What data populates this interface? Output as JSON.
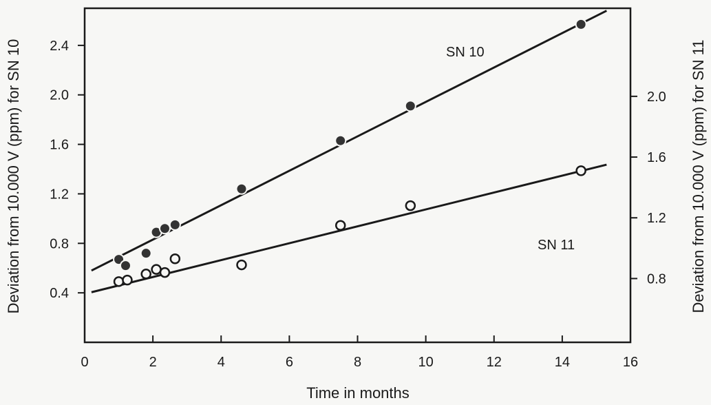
{
  "chart_data": {
    "type": "scatter",
    "xlabel": "Time in months",
    "ylabel_left": "Deviation from 10.000 V (ppm) for SN 10",
    "ylabel_right": "Deviation from 10.000 V (ppm) for SN 11",
    "xlim": [
      0,
      16
    ],
    "ylim_left": [
      0,
      2.7
    ],
    "ylim_right": [
      0.38,
      2.58
    ],
    "x_ticks": [
      "0",
      "2",
      "4",
      "6",
      "8",
      "10",
      "12",
      "14",
      "16"
    ],
    "y_ticks_left": [
      "0.4",
      "0.8",
      "1.2",
      "1.6",
      "2.0",
      "2.4"
    ],
    "y_ticks_right": [
      "0.8",
      "1.2",
      "1.6",
      "2.0"
    ],
    "grid": false,
    "series": [
      {
        "name": "SN 10",
        "marker": "filled-circle",
        "axis": "left",
        "x": [
          1.0,
          1.2,
          1.8,
          2.1,
          2.35,
          2.65,
          4.6,
          7.5,
          9.55,
          14.55
        ],
        "y": [
          0.67,
          0.62,
          0.72,
          0.89,
          0.92,
          0.95,
          1.24,
          1.63,
          1.91,
          2.57
        ],
        "fit": {
          "x": [
            0.2,
            15.3
          ],
          "y": [
            0.58,
            2.68
          ]
        }
      },
      {
        "name": "SN 11",
        "marker": "open-circle",
        "axis": "right",
        "x": [
          1.0,
          1.25,
          1.8,
          2.1,
          2.35,
          2.65,
          4.6,
          7.5,
          9.55,
          14.55
        ],
        "y": [
          0.78,
          0.79,
          0.83,
          0.86,
          0.84,
          0.93,
          0.89,
          1.15,
          1.28,
          1.51
        ],
        "fit": {
          "x": [
            0.2,
            15.3
          ],
          "y": [
            0.71,
            1.55
          ]
        }
      }
    ]
  },
  "colors": {
    "ink": "#1a1a1a",
    "marker_fill": "#333333",
    "background": "#f7f7f5"
  }
}
